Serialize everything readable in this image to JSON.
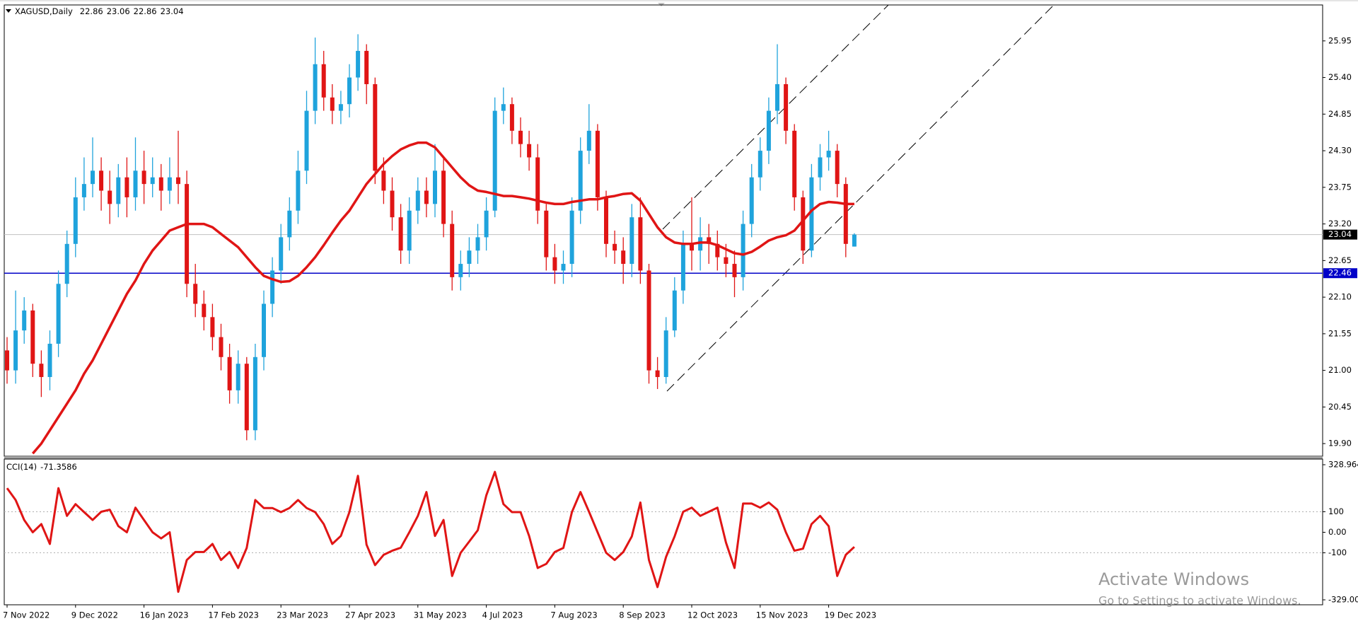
{
  "chart_data": [
    {
      "type": "candlestick",
      "title": "XAGUSD,Daily",
      "categories": [
        "7 Nov 2022",
        null,
        null,
        null,
        null,
        null,
        null,
        null,
        "9 Dec 2022",
        null,
        null,
        null,
        null,
        null,
        null,
        null,
        "16 Jan 2023",
        null,
        null,
        null,
        null,
        null,
        null,
        null,
        "17 Feb 2023",
        null,
        null,
        null,
        null,
        null,
        null,
        null,
        "23 Mar 2023",
        null,
        null,
        null,
        null,
        null,
        null,
        null,
        "27 Apr 2023",
        null,
        null,
        null,
        null,
        null,
        null,
        null,
        "31 May 2023",
        null,
        null,
        null,
        null,
        null,
        null,
        null,
        "4 Jul 2023",
        null,
        null,
        null,
        null,
        null,
        null,
        null,
        "7 Aug 2023",
        null,
        null,
        null,
        null,
        null,
        null,
        null,
        "8 Sep 2023",
        null,
        null,
        null,
        null,
        null,
        null,
        null,
        "12 Oct 2023",
        null,
        null,
        null,
        null,
        null,
        null,
        null,
        "15 Nov 2023",
        null,
        null,
        null,
        null,
        null,
        null,
        null,
        "19 Dec 2023",
        null,
        null,
        null
      ],
      "series": [
        {
          "up_color": "#1fa3dc",
          "down_color": "#e01515",
          "open": [
            21.3,
            21.0,
            21.6,
            21.9,
            21.1,
            20.9,
            21.4,
            22.3,
            22.9,
            23.6,
            23.8,
            24.0,
            23.7,
            23.5,
            23.9,
            23.6,
            24.0,
            23.8,
            23.9,
            23.7,
            23.9,
            23.8,
            22.3,
            22.0,
            21.8,
            21.5,
            21.2,
            20.7,
            21.1,
            20.1,
            21.2,
            22.0,
            22.5,
            23.0,
            23.4,
            24.0,
            24.9,
            25.6,
            25.1,
            24.9,
            25.0,
            25.4,
            25.8,
            25.3,
            24.0,
            23.7,
            23.3,
            22.8,
            23.4,
            23.7,
            23.5,
            24.0,
            23.2,
            22.4,
            22.6,
            22.8,
            23.0,
            23.4,
            24.9,
            25.0,
            24.6,
            24.4,
            24.2,
            23.4,
            22.7,
            22.5,
            22.6,
            23.4,
            24.3,
            24.6,
            23.6,
            22.9,
            22.8,
            22.6,
            23.3,
            22.5,
            21.0,
            20.9,
            21.6,
            22.2,
            22.9,
            22.8,
            23.0,
            22.9,
            22.7,
            22.6,
            22.4,
            23.2,
            23.9,
            24.3,
            24.9,
            25.3,
            24.6,
            23.6,
            22.8,
            23.9,
            24.2,
            24.3,
            23.8,
            22.86
          ],
          "high": [
            21.5,
            22.2,
            22.1,
            22.0,
            21.3,
            21.6,
            22.5,
            23.1,
            23.9,
            24.2,
            24.5,
            24.2,
            24.0,
            24.1,
            24.2,
            24.5,
            24.3,
            24.2,
            24.1,
            24.2,
            24.6,
            24.0,
            22.6,
            22.2,
            22.0,
            21.7,
            21.4,
            21.3,
            21.2,
            21.4,
            22.2,
            22.7,
            23.2,
            23.6,
            24.3,
            25.2,
            26.0,
            25.8,
            25.3,
            25.2,
            25.6,
            26.05,
            25.9,
            25.4,
            24.2,
            23.9,
            23.5,
            23.6,
            23.9,
            23.9,
            24.4,
            24.2,
            23.4,
            22.8,
            23.0,
            23.2,
            23.6,
            25.1,
            25.25,
            25.1,
            24.8,
            24.6,
            24.4,
            23.5,
            22.9,
            22.8,
            23.6,
            24.5,
            25.0,
            24.7,
            23.7,
            23.1,
            23.0,
            23.5,
            23.6,
            22.6,
            21.2,
            21.8,
            22.4,
            23.1,
            23.6,
            23.3,
            23.2,
            23.1,
            22.9,
            22.8,
            23.4,
            24.1,
            24.5,
            25.1,
            25.9,
            25.4,
            24.7,
            23.7,
            24.1,
            24.4,
            24.6,
            24.4,
            23.9,
            23.06
          ],
          "low": [
            20.8,
            20.8,
            21.4,
            20.9,
            20.6,
            20.7,
            21.2,
            22.1,
            22.7,
            23.4,
            23.6,
            23.4,
            23.2,
            23.3,
            23.3,
            23.4,
            23.5,
            23.6,
            23.4,
            23.5,
            23.5,
            22.1,
            21.8,
            21.6,
            21.3,
            21.0,
            20.5,
            20.5,
            19.95,
            19.95,
            21.0,
            21.8,
            22.3,
            22.8,
            23.2,
            23.8,
            24.7,
            24.9,
            24.7,
            24.7,
            24.8,
            25.2,
            25.0,
            23.8,
            23.5,
            23.1,
            22.6,
            22.6,
            23.2,
            23.3,
            23.3,
            23.0,
            22.2,
            22.2,
            22.4,
            22.6,
            22.8,
            23.3,
            24.7,
            24.4,
            24.2,
            24.0,
            23.2,
            22.5,
            22.3,
            22.3,
            22.4,
            23.2,
            24.1,
            23.4,
            22.7,
            22.6,
            22.3,
            22.4,
            22.3,
            20.8,
            20.72,
            20.8,
            21.5,
            22.0,
            22.5,
            22.5,
            22.6,
            22.5,
            22.4,
            22.1,
            22.2,
            23.0,
            23.7,
            24.1,
            24.7,
            24.4,
            23.4,
            22.6,
            22.7,
            23.7,
            24.0,
            23.6,
            22.7,
            22.86
          ],
          "close": [
            21.0,
            21.6,
            21.9,
            21.1,
            20.9,
            21.4,
            22.3,
            22.9,
            23.6,
            23.8,
            24.0,
            23.7,
            23.5,
            23.9,
            23.6,
            24.0,
            23.8,
            23.9,
            23.7,
            23.9,
            23.8,
            22.3,
            22.0,
            21.8,
            21.5,
            21.2,
            20.7,
            21.1,
            20.1,
            21.2,
            22.0,
            22.5,
            23.0,
            23.4,
            24.0,
            24.9,
            25.6,
            25.1,
            24.9,
            25.0,
            25.4,
            25.8,
            25.3,
            24.0,
            23.7,
            23.3,
            22.8,
            23.4,
            23.7,
            23.5,
            24.0,
            23.2,
            22.4,
            22.6,
            22.8,
            23.0,
            23.4,
            24.9,
            25.0,
            24.6,
            24.4,
            24.2,
            23.4,
            22.7,
            22.5,
            22.6,
            23.4,
            24.3,
            24.6,
            23.6,
            22.9,
            22.8,
            22.6,
            23.3,
            22.5,
            21.0,
            20.9,
            21.6,
            22.2,
            22.9,
            22.8,
            23.0,
            22.9,
            22.7,
            22.6,
            22.4,
            23.2,
            23.9,
            24.3,
            24.9,
            25.3,
            24.6,
            23.6,
            22.8,
            23.9,
            24.2,
            24.3,
            23.8,
            22.9,
            23.04
          ]
        },
        {
          "type": "line",
          "color": "#e01515",
          "values": [
            null,
            null,
            null,
            19.75,
            19.9,
            20.1,
            20.3,
            20.5,
            20.7,
            20.95,
            21.15,
            21.4,
            21.65,
            21.9,
            22.15,
            22.35,
            22.6,
            22.8,
            22.95,
            23.1,
            23.15,
            23.2,
            23.2,
            23.2,
            23.15,
            23.05,
            22.95,
            22.85,
            22.7,
            22.55,
            22.42,
            22.37,
            22.33,
            22.34,
            22.42,
            22.55,
            22.7,
            22.88,
            23.07,
            23.25,
            23.4,
            23.6,
            23.8,
            23.95,
            24.1,
            24.22,
            24.32,
            24.38,
            24.42,
            24.42,
            24.35,
            24.2,
            24.05,
            23.9,
            23.78,
            23.7,
            23.68,
            23.65,
            23.62,
            23.62,
            23.6,
            23.58,
            23.55,
            23.52,
            23.5,
            23.5,
            23.53,
            23.55,
            23.57,
            23.57,
            23.6,
            23.62,
            23.65,
            23.66,
            23.55,
            23.35,
            23.15,
            23.0,
            22.92,
            22.9,
            22.9,
            22.92,
            22.92,
            22.88,
            22.82,
            22.76,
            22.74,
            22.78,
            22.86,
            22.95,
            23.0,
            23.03,
            23.1,
            23.25,
            23.4,
            23.5,
            23.53,
            23.52,
            23.5,
            23.5
          ]
        }
      ],
      "hlines": [
        {
          "value": 22.46,
          "color": "#0000c8"
        }
      ],
      "ylim": [
        19.71,
        26.49
      ],
      "yticks": [
        {
          "value": 19.9,
          "label": "19.90"
        },
        20.45,
        {
          "value": 21.0,
          "label": "21.00"
        },
        21.55,
        {
          "value": 22.1,
          "label": "22.10"
        },
        22.65,
        {
          "value": 23.2,
          "label": "23.20"
        },
        23.75,
        {
          "value": 24.3,
          "label": "24.30"
        },
        24.85,
        {
          "value": 25.4,
          "label": "25.40"
        },
        25.95
      ]
    },
    {
      "type": "line",
      "title": "CCI(14)",
      "series": [
        {
          "color": "#e01515",
          "values": [
            215,
            157,
            60,
            0,
            40,
            -57,
            215,
            80,
            137,
            98,
            60,
            100,
            110,
            30,
            0,
            120,
            60,
            0,
            -30,
            0,
            -290,
            -135,
            -96,
            -96,
            -57,
            -135,
            -96,
            -174,
            -76,
            157,
            118,
            118,
            98,
            118,
            157,
            118,
            98,
            40,
            -57,
            -18,
            98,
            275,
            -60,
            -160,
            -110,
            -90,
            -75,
            0,
            80,
            196,
            -18,
            60,
            -213,
            -100,
            -45,
            10,
            180,
            294,
            137,
            98,
            98,
            -18,
            -174,
            -154,
            -96,
            -76,
            98,
            196,
            100,
            0,
            -100,
            -135,
            -96,
            -20,
            145,
            -135,
            -267,
            -120,
            -20,
            100,
            120,
            80,
            100,
            120,
            -50,
            -174,
            140,
            140,
            120,
            145,
            110,
            0,
            -90,
            -80,
            40,
            80,
            30,
            -213,
            -110,
            -71.3586
          ]
        }
      ],
      "levels": [
        100,
        -100
      ],
      "ylim": [
        -329,
        328.964
      ],
      "yticks": [
        328.964,
        100,
        {
          "value": 0,
          "label": "0.00"
        },
        -100,
        {
          "value": -329,
          "label": "-329.000"
        }
      ]
    }
  ],
  "overlay": {
    "title": "Activate Windows",
    "subtitle": "Go to Settings to activate Windows."
  }
}
